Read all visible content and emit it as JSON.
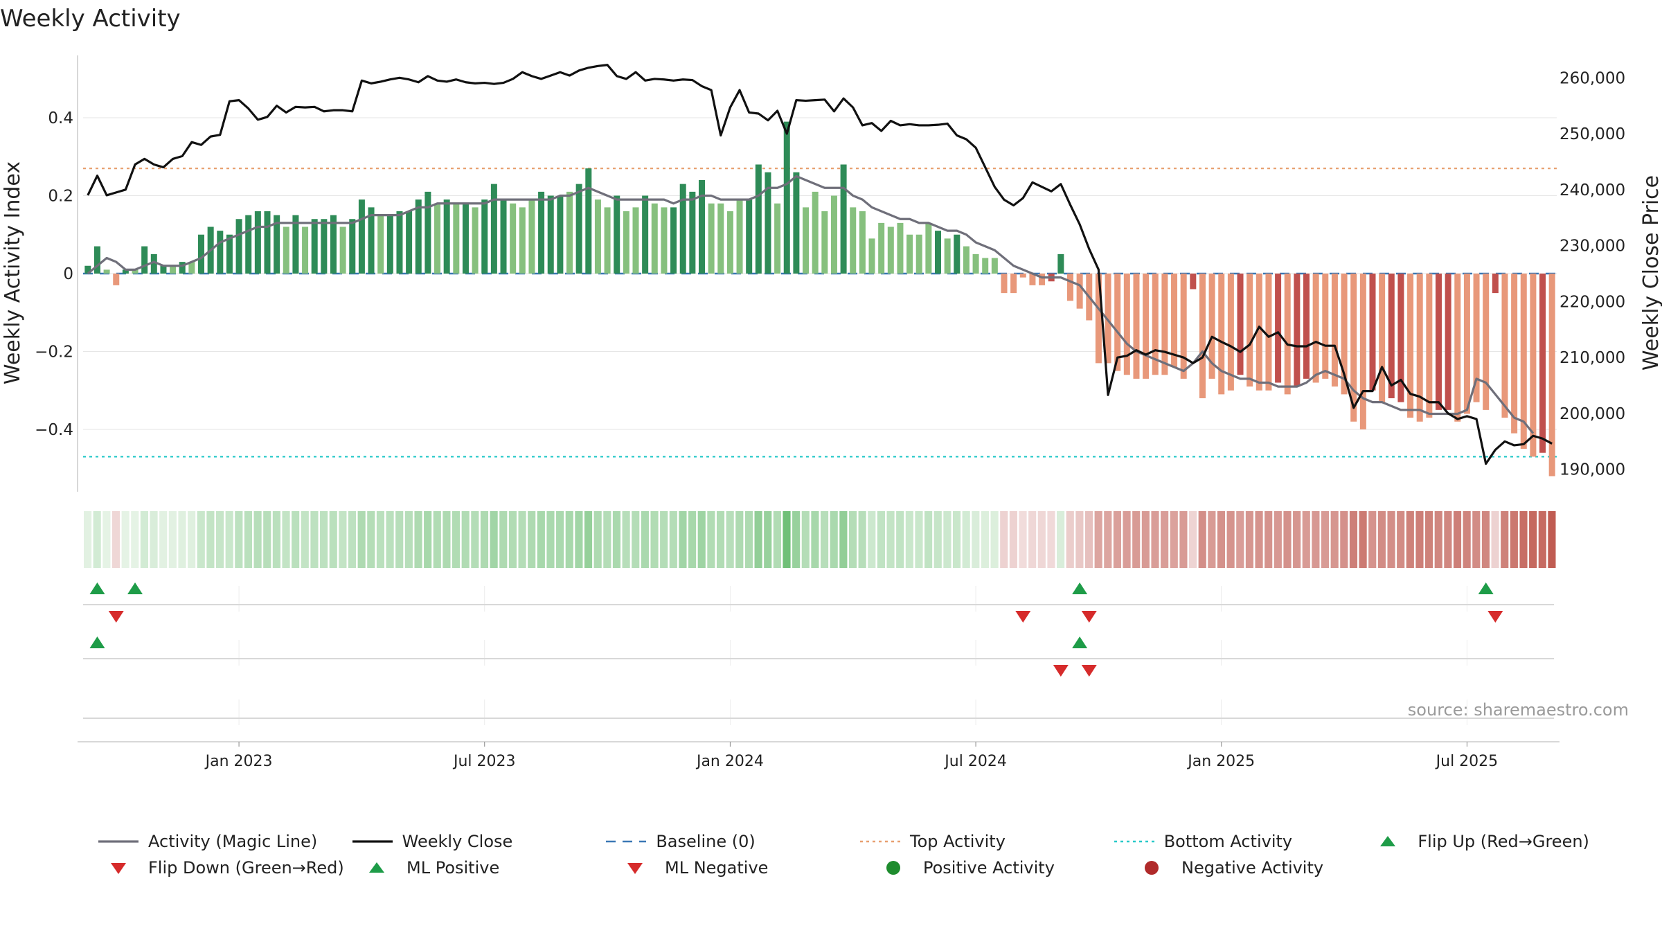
{
  "chart_data": {
    "type": "bar",
    "title": "Weekly Activity",
    "ylabel": "Weekly Activity Index",
    "y2label": "Weekly Close Price",
    "ylim": [
      -0.56,
      0.56
    ],
    "y2lim": [
      186000,
      264000
    ],
    "yticks": [
      {
        "value": 0.4,
        "label": "0.4"
      },
      {
        "value": 0.2,
        "label": "0.2"
      },
      {
        "value": 0,
        "label": "0"
      },
      {
        "value": -0.2,
        "label": "−0.2"
      },
      {
        "value": -0.4,
        "label": "−0.4"
      }
    ],
    "y2ticks": [
      {
        "value": 260000,
        "label": "260,000"
      },
      {
        "value": 250000,
        "label": "250,000"
      },
      {
        "value": 240000,
        "label": "240,000"
      },
      {
        "value": 230000,
        "label": "230,000"
      },
      {
        "value": 220000,
        "label": "220,000"
      },
      {
        "value": 210000,
        "label": "210,000"
      },
      {
        "value": 200000,
        "label": "200,000"
      },
      {
        "value": 190000,
        "label": "190,000"
      }
    ],
    "xticks": [
      {
        "week": 16,
        "label": "Jan 2023"
      },
      {
        "week": 42,
        "label": "Jul 2023"
      },
      {
        "week": 68,
        "label": "Jan 2024"
      },
      {
        "week": 94,
        "label": "Jul 2024"
      },
      {
        "week": 120,
        "label": "Jan 2025"
      },
      {
        "week": 146,
        "label": "Jul 2025"
      }
    ],
    "n_weeks": 156,
    "series": [
      {
        "name": "Weekly Activity",
        "type": "bar",
        "values": [
          0.02,
          0.07,
          0.01,
          -0.03,
          0.01,
          0.01,
          0.07,
          0.05,
          0.02,
          0.02,
          0.03,
          0.03,
          0.1,
          0.12,
          0.11,
          0.1,
          0.14,
          0.15,
          0.16,
          0.16,
          0.15,
          0.12,
          0.15,
          0.12,
          0.14,
          0.14,
          0.15,
          0.12,
          0.14,
          0.19,
          0.17,
          0.15,
          0.15,
          0.16,
          0.16,
          0.19,
          0.21,
          0.18,
          0.19,
          0.18,
          0.18,
          0.17,
          0.19,
          0.23,
          0.19,
          0.18,
          0.17,
          0.19,
          0.21,
          0.2,
          0.2,
          0.21,
          0.23,
          0.27,
          0.19,
          0.17,
          0.2,
          0.16,
          0.17,
          0.2,
          0.18,
          0.17,
          0.17,
          0.23,
          0.21,
          0.24,
          0.18,
          0.18,
          0.16,
          0.19,
          0.19,
          0.28,
          0.26,
          0.18,
          0.39,
          0.26,
          0.17,
          0.21,
          0.16,
          0.2,
          0.28,
          0.17,
          0.16,
          0.09,
          0.13,
          0.12,
          0.13,
          0.1,
          0.1,
          0.13,
          0.11,
          0.09,
          0.1,
          0.07,
          0.05,
          0.04,
          0.04,
          -0.05,
          -0.05,
          -0.01,
          -0.03,
          -0.03,
          -0.02,
          0.05,
          -0.07,
          -0.09,
          -0.12,
          -0.23,
          -0.23,
          -0.25,
          -0.26,
          -0.27,
          -0.27,
          -0.26,
          -0.26,
          -0.24,
          -0.27,
          -0.04,
          -0.32,
          -0.27,
          -0.31,
          -0.3,
          -0.26,
          -0.29,
          -0.3,
          -0.3,
          -0.28,
          -0.31,
          -0.29,
          -0.27,
          -0.28,
          -0.27,
          -0.29,
          -0.31,
          -0.38,
          -0.4,
          -0.3,
          -0.33,
          -0.32,
          -0.33,
          -0.37,
          -0.38,
          -0.37,
          -0.35,
          -0.35,
          -0.38,
          -0.36,
          -0.33,
          -0.35,
          -0.05,
          -0.37,
          -0.41,
          -0.45,
          -0.47,
          -0.46,
          -0.52
        ]
      },
      {
        "name": "Activity (Magic Line)",
        "type": "line",
        "color": "#6f6f7a",
        "values": [
          0.0,
          0.02,
          0.04,
          0.03,
          0.01,
          0.01,
          0.02,
          0.03,
          0.02,
          0.02,
          0.02,
          0.03,
          0.04,
          0.06,
          0.08,
          0.09,
          0.1,
          0.11,
          0.12,
          0.12,
          0.13,
          0.13,
          0.13,
          0.13,
          0.13,
          0.13,
          0.13,
          0.13,
          0.13,
          0.14,
          0.15,
          0.15,
          0.15,
          0.15,
          0.16,
          0.17,
          0.17,
          0.18,
          0.18,
          0.18,
          0.18,
          0.18,
          0.18,
          0.19,
          0.19,
          0.19,
          0.19,
          0.19,
          0.19,
          0.19,
          0.2,
          0.2,
          0.21,
          0.22,
          0.21,
          0.2,
          0.19,
          0.19,
          0.19,
          0.19,
          0.19,
          0.19,
          0.18,
          0.19,
          0.19,
          0.2,
          0.2,
          0.19,
          0.19,
          0.19,
          0.19,
          0.2,
          0.22,
          0.22,
          0.23,
          0.25,
          0.24,
          0.23,
          0.22,
          0.22,
          0.22,
          0.2,
          0.19,
          0.17,
          0.16,
          0.15,
          0.14,
          0.14,
          0.13,
          0.13,
          0.12,
          0.11,
          0.11,
          0.1,
          0.08,
          0.07,
          0.06,
          0.04,
          0.02,
          0.01,
          0.0,
          -0.01,
          -0.01,
          -0.01,
          -0.02,
          -0.03,
          -0.06,
          -0.09,
          -0.12,
          -0.15,
          -0.18,
          -0.2,
          -0.21,
          -0.22,
          -0.23,
          -0.24,
          -0.25,
          -0.23,
          -0.2,
          -0.23,
          -0.25,
          -0.26,
          -0.27,
          -0.27,
          -0.28,
          -0.28,
          -0.29,
          -0.29,
          -0.29,
          -0.28,
          -0.26,
          -0.25,
          -0.26,
          -0.27,
          -0.3,
          -0.32,
          -0.33,
          -0.33,
          -0.34,
          -0.35,
          -0.35,
          -0.35,
          -0.36,
          -0.36,
          -0.36,
          -0.36,
          -0.35,
          -0.27,
          -0.28,
          -0.31,
          -0.34,
          -0.37,
          -0.38,
          -0.41
        ]
      },
      {
        "name": "Weekly Close",
        "type": "line",
        "axis": "y2",
        "color": "#111111",
        "values": [
          239000,
          242500,
          239000,
          239500,
          240000,
          244500,
          245500,
          244500,
          244000,
          245500,
          246000,
          248500,
          248000,
          249500,
          249800,
          255800,
          256000,
          254500,
          252500,
          253000,
          255000,
          253800,
          254800,
          254700,
          254800,
          254000,
          254200,
          254200,
          254000,
          259500,
          259000,
          259300,
          259700,
          260000,
          259700,
          259200,
          260300,
          259500,
          259300,
          259700,
          259200,
          259000,
          259100,
          258900,
          259100,
          259800,
          261000,
          260300,
          259800,
          260400,
          261000,
          260400,
          261300,
          261800,
          262100,
          262300,
          260300,
          259800,
          261000,
          259500,
          259800,
          259700,
          259500,
          259700,
          259600,
          258500,
          257800,
          249700,
          254700,
          257800,
          253800,
          253600,
          252400,
          254100,
          250000,
          256000,
          255900,
          256000,
          256100,
          254000,
          256300,
          254700,
          251500,
          251900,
          250500,
          252300,
          251500,
          251700,
          251500,
          251500,
          251600,
          251800,
          249700,
          249000,
          247500,
          244000,
          240500,
          238200,
          237200,
          238500,
          241300,
          240500,
          239700,
          241000,
          237300,
          233800,
          229400,
          225700,
          203300,
          210000,
          210300,
          211300,
          210500,
          211300,
          211000,
          210500,
          210000,
          209000,
          210000,
          213700,
          212800,
          212000,
          211000,
          212300,
          215500,
          213700,
          214500,
          212300,
          212000,
          212000,
          212800,
          212100,
          212100,
          207000,
          201000,
          204000,
          204000,
          208300,
          205000,
          206000,
          203500,
          203000,
          202000,
          202000,
          200000,
          199000,
          199500,
          199000,
          191000,
          193500,
          195000,
          194300,
          194500,
          196000,
          195500,
          194600
        ]
      },
      {
        "name": "Baseline (0)",
        "type": "hline",
        "value": 0,
        "color": "#3a78b5"
      },
      {
        "name": "Top Activity",
        "type": "hline",
        "value": 0.27,
        "color": "#e8a070"
      },
      {
        "name": "Bottom Activity",
        "type": "hline",
        "value": -0.47,
        "color": "#28c9c9"
      }
    ],
    "markers": {
      "flip_up": [
        1,
        5,
        105,
        148
      ],
      "flip_down": [
        3,
        99,
        106,
        149
      ],
      "ml_positive": [
        1,
        105
      ],
      "ml_negative": [
        103,
        106
      ]
    },
    "legend_placement": "bottom",
    "grid": true
  },
  "labels": {
    "title": "Weekly Activity",
    "ylabel": "Weekly Activity Index",
    "y2label": "Weekly Close Price",
    "source": "source: sharemaestro.com"
  },
  "legend": [
    {
      "label": "Activity (Magic Line)",
      "kind": "line",
      "color": "#6f6f7a"
    },
    {
      "label": "Weekly Close",
      "kind": "line",
      "color": "#111111"
    },
    {
      "label": "Baseline (0)",
      "kind": "dashed",
      "color": "#3a78b5"
    },
    {
      "label": "Top Activity",
      "kind": "dotted",
      "color": "#e8a070"
    },
    {
      "label": "Bottom Activity",
      "kind": "dotted",
      "color": "#28c9c9"
    },
    {
      "label": "Flip Up (Red→Green)",
      "kind": "tri-up",
      "color": "#1e9c48"
    },
    {
      "label": "Flip Down (Green→Red)",
      "kind": "tri-down",
      "color": "#d62b2b"
    },
    {
      "label": "ML Positive",
      "kind": "tri-up",
      "color": "#1e9c48"
    },
    {
      "label": "ML Negative",
      "kind": "tri-down",
      "color": "#d62b2b"
    },
    {
      "label": "Positive Activity",
      "kind": "dot",
      "color": "#1e8c2e"
    },
    {
      "label": "Negative Activity",
      "kind": "dot",
      "color": "#b02a2a"
    }
  ],
  "colors": {
    "pos_strong": "#2e8b57",
    "pos_light": "#86c07e",
    "neg_strong": "#c0504d",
    "neg_light": "#e8987a",
    "grid": "#e6e6e6"
  }
}
